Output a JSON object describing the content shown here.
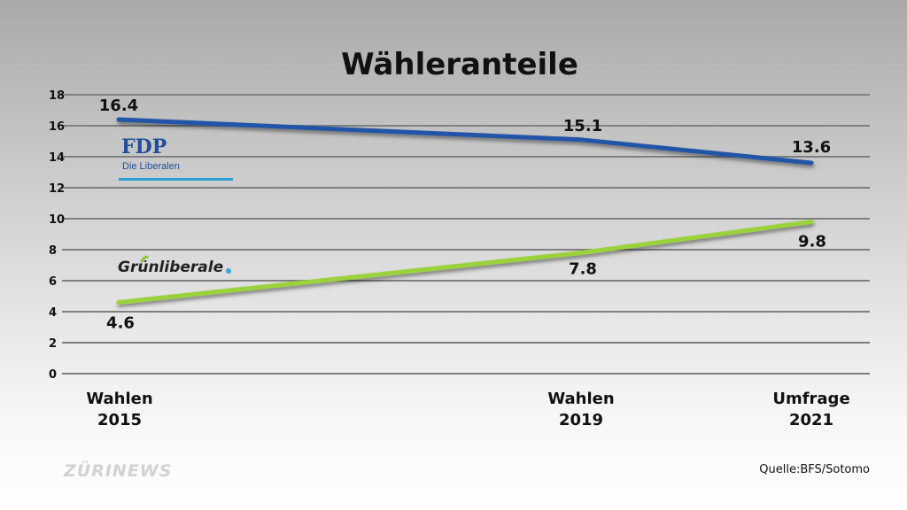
{
  "chart_data": {
    "type": "line",
    "title": "Wähleranteile",
    "categories": [
      "Wahlen 2015",
      "Wahlen 2019",
      "Umfrage 2021"
    ],
    "category_lines": [
      [
        "Wahlen",
        "2015"
      ],
      [
        "Wahlen",
        "2019"
      ],
      [
        "Umfrage",
        "2021"
      ]
    ],
    "y_ticks": [
      0,
      2,
      4,
      6,
      8,
      10,
      12,
      14,
      16,
      18
    ],
    "ylim": [
      0,
      18
    ],
    "grid": true,
    "series": [
      {
        "values": [
          16.4,
          15.1,
          13.6
        ],
        "labels": [
          "16.4",
          "15.1",
          "13.6"
        ],
        "color": "#2455a8"
      },
      {
        "values": [
          4.6,
          7.8,
          9.8
        ],
        "labels": [
          "4.6",
          "7.8",
          "9.8"
        ],
        "color": "#9ad23a"
      }
    ]
  },
  "logos": {
    "fdp": {
      "name": "FDP",
      "subtitle": "Die Liberalen",
      "color": "#1f4e9c",
      "underline_color": "#2a9fd8"
    },
    "glp": {
      "name": "Grünliberale",
      "dot_color": "#3aa6dc",
      "accent_color": "#8cc63f"
    }
  },
  "source": "Quelle:BFS/Sotomo",
  "watermark": "ZÜRINEWS"
}
